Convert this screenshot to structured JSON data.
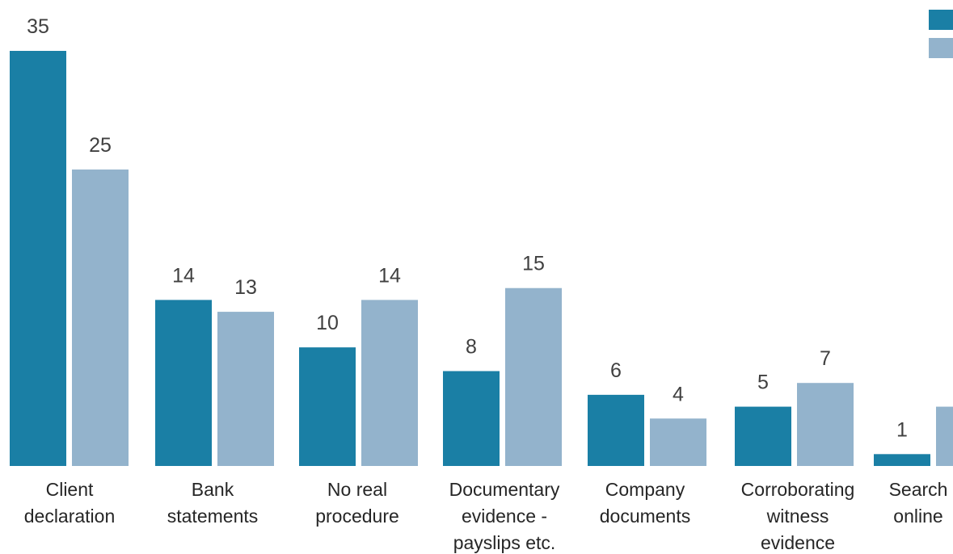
{
  "chart_data": {
    "type": "bar",
    "categories": [
      [
        "Client",
        "declaration"
      ],
      [
        "Bank",
        "statements"
      ],
      [
        "No real",
        "procedure"
      ],
      [
        "Documentary",
        "evidence -",
        "payslips etc."
      ],
      [
        "Company",
        "documents"
      ],
      [
        "Corroborating",
        "witness",
        "evidence"
      ],
      [
        "Search",
        "online"
      ]
    ],
    "series": [
      {
        "values": [
          35,
          14,
          10,
          8,
          6,
          5,
          1
        ],
        "color": "#1a7fa5"
      },
      {
        "values": [
          25,
          13,
          14,
          15,
          4,
          7,
          5
        ],
        "color": "#93b3cc"
      }
    ],
    "ylim": [
      0,
      35
    ],
    "grid": false,
    "legend": "top-right",
    "title": "",
    "xlabel": "",
    "ylabel": ""
  }
}
